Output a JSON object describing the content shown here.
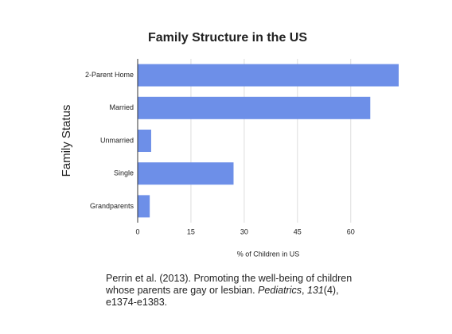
{
  "chart_data": {
    "type": "bar",
    "orientation": "horizontal",
    "title": "Family Structure in the US",
    "ylabel": "Family Status",
    "xlabel": "% of Children in US",
    "categories": [
      "2-Parent Home",
      "Married",
      "Unmarried",
      "Single",
      "Grandparents"
    ],
    "values": [
      73.5,
      65.5,
      3.8,
      27,
      3.4
    ],
    "color": "#6d8fe8",
    "xlim": [
      0,
      73.5
    ],
    "xticks": [
      0,
      15,
      30,
      45,
      60
    ],
    "grid": true
  },
  "citation": [
    "Perrin et al. (2013). Promoting the well-being of children whose parents are gay or lesbian. ",
    "Pediatrics",
    ", ",
    "131",
    "(4), e1374-e1383."
  ]
}
